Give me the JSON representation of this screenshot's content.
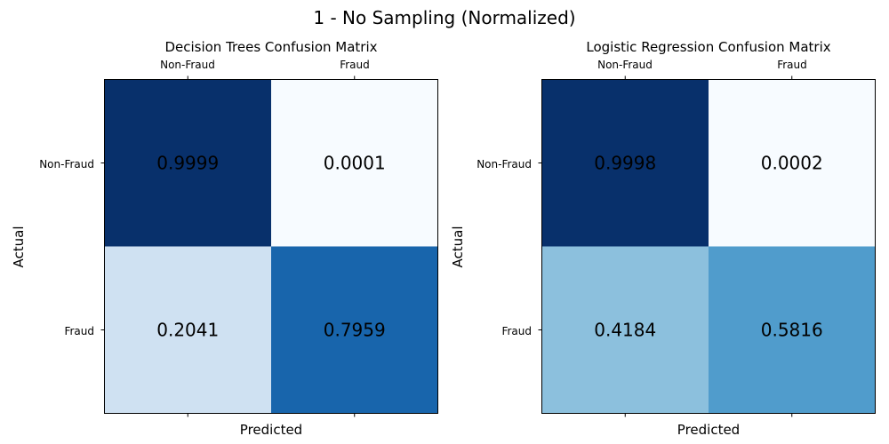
{
  "suptitle": "1 - No Sampling (Normalized)",
  "chart_data": [
    {
      "type": "heatmap",
      "title": "Decision Trees Confusion Matrix",
      "xlabel": "Predicted",
      "ylabel": "Actual",
      "x_categories": [
        "Non-Fraud",
        "Fraud"
      ],
      "y_categories": [
        "Non-Fraud",
        "Fraud"
      ],
      "values": [
        [
          0.9999,
          0.0001
        ],
        [
          0.2041,
          0.7959
        ]
      ],
      "labels": [
        [
          "0.9999",
          "0.0001"
        ],
        [
          "0.2041",
          "0.7959"
        ]
      ],
      "colormap": "Blues",
      "vrange": [
        0.0001,
        0.9999
      ],
      "x_ticks_position": "top and bottom (labels on top)"
    },
    {
      "type": "heatmap",
      "title": "Logistic Regression Confusion Matrix",
      "xlabel": "Predicted",
      "ylabel": "Actual",
      "x_categories": [
        "Non-Fraud",
        "Fraud"
      ],
      "y_categories": [
        "Non-Fraud",
        "Fraud"
      ],
      "values": [
        [
          0.9998,
          0.0002
        ],
        [
          0.4184,
          0.5816
        ]
      ],
      "labels": [
        [
          "0.9998",
          "0.0002"
        ],
        [
          "0.4184",
          "0.5816"
        ]
      ],
      "colormap": "Blues",
      "vrange": [
        0.0002,
        0.9998
      ],
      "x_ticks_position": "top and bottom (labels on top)"
    }
  ]
}
